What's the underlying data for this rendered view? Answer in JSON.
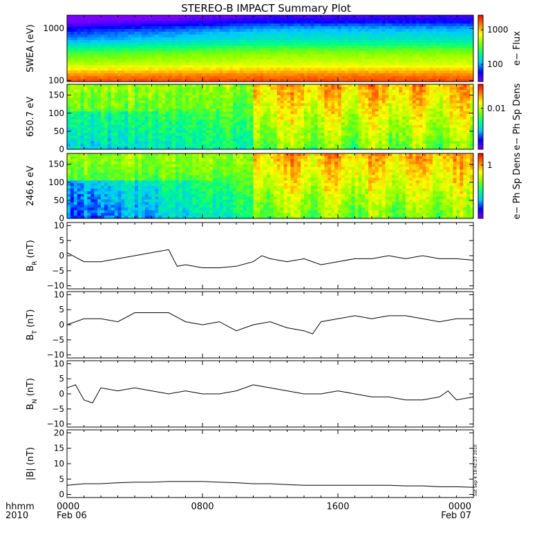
{
  "title": "STEREO-B IMPACT Summary Plot",
  "time_axis": {
    "row1_labels": [
      "0000",
      "0800",
      "1600",
      "0000"
    ],
    "row2_labels": [
      "Feb 06",
      "",
      "",
      "Feb 07"
    ],
    "hours": [
      0,
      8,
      16,
      24
    ],
    "left_label_1": "hhmm",
    "left_label_2": "2010"
  },
  "stamp": "Sat Sep  4 18:42:27 2010",
  "chart_data": [
    {
      "type": "heatmap",
      "ylabel": "SWEA (eV)",
      "yscale": "log",
      "ylim": [
        95,
        1800
      ],
      "yticks": [
        {
          "v": 100,
          "label": "100"
        },
        {
          "v": 1000,
          "label": "1000"
        }
      ],
      "colorbar_label": "e− Flux",
      "colorbar_ticks": [
        {
          "frac": 0.26,
          "label": "100"
        },
        {
          "frac": 0.78,
          "label": "1000"
        }
      ],
      "colormap": [
        "#7a00ff",
        "#0000ff",
        "#00c8ff",
        "#00ff80",
        "#80ff00",
        "#ffff00",
        "#ff8000",
        "#ff0000"
      ]
    },
    {
      "type": "heatmap",
      "ylabel": "650.7 eV",
      "ylim": [
        0,
        180
      ],
      "yticks": [
        {
          "v": 0,
          "label": "0"
        },
        {
          "v": 50,
          "label": "50"
        },
        {
          "v": 100,
          "label": "100"
        },
        {
          "v": 150,
          "label": "150"
        }
      ],
      "colorbar_label": "e− Ph Sp Dens",
      "colorbar_ticks": [
        {
          "frac": 0.63,
          "label": "0.01"
        }
      ],
      "colormap": [
        "#7a00ff",
        "#0000ff",
        "#00c8ff",
        "#00ff80",
        "#80ff00",
        "#ffff00",
        "#ff8000",
        "#ff0000"
      ]
    },
    {
      "type": "heatmap",
      "ylabel": "246.6 eV",
      "ylim": [
        0,
        180
      ],
      "yticks": [
        {
          "v": 0,
          "label": "0"
        },
        {
          "v": 50,
          "label": "50"
        },
        {
          "v": 100,
          "label": "100"
        },
        {
          "v": 150,
          "label": "150"
        }
      ],
      "colorbar_label": "e− Ph Sp Dens",
      "colorbar_ticks": [
        {
          "frac": 0.82,
          "label": "1"
        }
      ],
      "colormap": [
        "#7a00ff",
        "#0000ff",
        "#00c8ff",
        "#00ff80",
        "#80ff00",
        "#ffff00",
        "#ff8000",
        "#ff0000"
      ]
    },
    {
      "type": "line",
      "ylabel": "B",
      "ylabel_sub": "R",
      "ylabel_unit": " (nT)",
      "ylim": [
        -11,
        11
      ],
      "yticks": [
        {
          "v": -10,
          "label": "−10"
        },
        {
          "v": -5,
          "label": "−5"
        },
        {
          "v": 0,
          "label": "0"
        },
        {
          "v": 5,
          "label": "5"
        },
        {
          "v": 10,
          "label": "10"
        }
      ],
      "x": [
        0,
        1,
        2,
        3,
        4,
        5,
        6,
        6.5,
        7,
        8,
        9,
        10,
        11,
        11.5,
        12,
        13,
        14,
        15,
        16,
        17,
        18,
        19,
        20,
        21,
        22,
        23,
        24
      ],
      "y": [
        1,
        -2,
        -2,
        -1,
        0,
        1,
        2,
        -3.5,
        -3,
        -4,
        -4,
        -3.5,
        -2,
        0,
        -1,
        -2,
        -1,
        -3,
        -2,
        -1,
        -1,
        0,
        -1,
        0,
        -1,
        -1,
        -1.5
      ]
    },
    {
      "type": "line",
      "ylabel": "B",
      "ylabel_sub": "T",
      "ylabel_unit": " (nT)",
      "ylim": [
        -11,
        11
      ],
      "yticks": [
        {
          "v": -10,
          "label": "−10"
        },
        {
          "v": -5,
          "label": "−5"
        },
        {
          "v": 0,
          "label": "0"
        },
        {
          "v": 5,
          "label": "5"
        },
        {
          "v": 10,
          "label": "10"
        }
      ],
      "x": [
        0,
        1,
        2,
        3,
        4,
        5,
        6,
        7,
        8,
        9,
        10,
        11,
        12,
        13,
        14,
        14.5,
        15,
        16,
        17,
        18,
        19,
        20,
        21,
        22,
        23,
        24
      ],
      "y": [
        0,
        2,
        2,
        1,
        4,
        4,
        4,
        1,
        0,
        1,
        -2,
        0,
        1,
        -1,
        -2,
        -3,
        1,
        2,
        3,
        2,
        3,
        3,
        2,
        1,
        2,
        2
      ]
    },
    {
      "type": "line",
      "ylabel": "B",
      "ylabel_sub": "N",
      "ylabel_unit": " (nT)",
      "ylim": [
        -11,
        11
      ],
      "yticks": [
        {
          "v": -10,
          "label": "−10"
        },
        {
          "v": -5,
          "label": "−5"
        },
        {
          "v": 0,
          "label": "0"
        },
        {
          "v": 5,
          "label": "5"
        },
        {
          "v": 10,
          "label": "10"
        }
      ],
      "x": [
        0,
        0.5,
        1,
        1.5,
        2,
        3,
        4,
        5,
        6,
        7,
        8,
        9,
        10,
        11,
        12,
        13,
        14,
        15,
        16,
        17,
        18,
        19,
        20,
        21,
        22,
        22.5,
        23,
        24
      ],
      "y": [
        2,
        3,
        -2,
        -3,
        2,
        1,
        2,
        1,
        0,
        1,
        0,
        0,
        1,
        3,
        2,
        1,
        0,
        0,
        1,
        0,
        -1,
        -1,
        -2,
        -2,
        -1,
        1,
        -2,
        -1
      ]
    },
    {
      "type": "line",
      "ylabel": "|B| (nT)",
      "ylim": [
        -1,
        21
      ],
      "yticks": [
        {
          "v": 0,
          "label": "0"
        },
        {
          "v": 5,
          "label": "5"
        },
        {
          "v": 10,
          "label": "10"
        },
        {
          "v": 15,
          "label": "15"
        },
        {
          "v": 20,
          "label": "20"
        }
      ],
      "x": [
        0,
        1,
        2,
        3,
        4,
        5,
        6,
        7,
        8,
        9,
        10,
        11,
        12,
        13,
        14,
        15,
        16,
        17,
        18,
        19,
        20,
        21,
        22,
        23,
        24
      ],
      "y": [
        3,
        3.5,
        3.5,
        3.8,
        4,
        4,
        4.2,
        4.2,
        4.2,
        4,
        3.8,
        3.5,
        3.5,
        3.2,
        3,
        3,
        3,
        3,
        3,
        3,
        2.8,
        2.8,
        2.5,
        2.5,
        2.3
      ]
    }
  ]
}
